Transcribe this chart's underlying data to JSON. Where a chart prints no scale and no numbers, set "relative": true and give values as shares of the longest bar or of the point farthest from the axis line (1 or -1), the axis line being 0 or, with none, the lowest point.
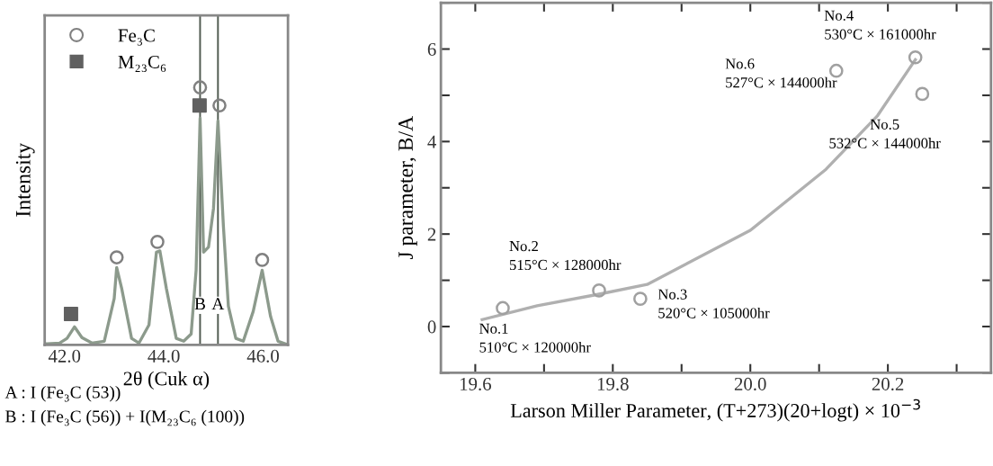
{
  "chart_data": [
    {
      "type": "line",
      "relative": true,
      "xlabel": "2θ (Cuk α)",
      "ylabel": "Intensity",
      "xlim": [
        41.6,
        46.5
      ],
      "xticks": [
        {
          "value": 42,
          "label": "42.0"
        },
        {
          "value": 44,
          "label": "44.0"
        },
        {
          "value": 46,
          "label": "46.0"
        }
      ],
      "tick_labels": "x",
      "legend": "top left",
      "grid": false,
      "series": [
        {
          "color": "#8c9a8c",
          "marker": "none",
          "x": [
            41.65,
            41.9,
            42.05,
            42.2,
            42.35,
            42.55,
            42.8,
            43.0,
            43.05,
            43.15,
            43.35,
            43.5,
            43.7,
            43.85,
            43.92,
            44.05,
            44.25,
            44.4,
            44.55,
            44.65,
            44.73,
            44.8,
            44.9,
            45.0,
            45.09,
            45.2,
            45.3,
            45.45,
            45.6,
            45.8,
            45.98,
            46.15,
            46.3,
            46.45
          ],
          "values": [
            0.004,
            0.007,
            0.025,
            0.07,
            0.028,
            0.007,
            0.014,
            0.18,
            0.3,
            0.22,
            0.025,
            0.007,
            0.077,
            0.36,
            0.365,
            0.22,
            0.025,
            0.014,
            0.042,
            0.29,
            0.88,
            0.36,
            0.38,
            0.53,
            0.87,
            0.46,
            0.15,
            0.025,
            0.014,
            0.13,
            0.29,
            0.11,
            0.014,
            0.004
          ]
        },
        {
          "type": "scatter",
          "name": "Fe₃C",
          "color": "#808080",
          "marker": "circle",
          "x": [
            43.05,
            43.87,
            44.73,
            45.12,
            45.98
          ],
          "values": [
            0.34,
            0.4,
            1.0,
            0.93,
            0.33
          ]
        },
        {
          "type": "scatter",
          "name": "M₂₃C₆",
          "color": "#606060",
          "marker": "square",
          "x": [
            42.13,
            44.72
          ],
          "values": [
            0.12,
            0.93
          ]
        }
      ],
      "ref_lines": [
        {
          "axis": "x",
          "value": 44.73,
          "label": "B",
          "color": "#505a50"
        },
        {
          "axis": "x",
          "value": 45.09,
          "label": "A",
          "color": "#505a50"
        }
      ],
      "annotations": [
        "A : I (Fe₃C (53))",
        "B : I (Fe₃C (56)) + I(M₂₃C₆ (100))"
      ]
    },
    {
      "type": "scatter",
      "xlabel": "Larson Miller Parameter, (T+273)(20+logt) × 10$^{−3}$",
      "ylabel": "J parameter, B/A",
      "xlim": [
        19.55,
        20.35
      ],
      "ylim": [
        -1,
        7
      ],
      "xticks": [
        {
          "value": 19.6,
          "label": "19.6"
        },
        {
          "value": 19.7,
          "label": null
        },
        {
          "value": 19.8,
          "label": "19.8"
        },
        {
          "value": 19.9,
          "label": null
        },
        {
          "value": 20.0,
          "label": "20.0"
        },
        {
          "value": 20.1,
          "label": null
        },
        {
          "value": 20.2,
          "label": "20.2"
        },
        {
          "value": 20.3,
          "label": null
        }
      ],
      "yticks": [
        {
          "value": -1,
          "label": null
        },
        0,
        {
          "value": 1,
          "label": null
        },
        2,
        {
          "value": 3,
          "label": null
        },
        4,
        {
          "value": 5,
          "label": null
        },
        6,
        {
          "value": 7,
          "label": null
        }
      ],
      "legend": false,
      "grid": false,
      "series": [
        {
          "color": "#a0a0a0",
          "marker": "circle",
          "x": [
            19.64,
            19.78,
            19.84,
            20.24,
            20.25,
            20.125
          ],
          "values": [
            0.4,
            0.78,
            0.6,
            5.82,
            5.03,
            5.53
          ]
        },
        {
          "type": "line",
          "color": "#b0b0b0",
          "marker": "none",
          "x": [
            19.61,
            19.69,
            19.78,
            19.85,
            20.0,
            20.11,
            20.185,
            20.24
          ],
          "values": [
            0.15,
            0.45,
            0.7,
            0.91,
            2.08,
            3.4,
            4.56,
            5.77
          ]
        }
      ],
      "annotations": [
        {
          "text": "No.1\n510°C × 120000hr",
          "x": 19.64,
          "y": 0.4
        },
        {
          "text": "No.2\n515°C × 128000hr",
          "x": 19.78,
          "y": 0.78
        },
        {
          "text": "No.3\n520°C × 105000hr",
          "x": 19.84,
          "y": 0.6
        },
        {
          "text": "No.4\n530°C × 161000hr",
          "x": 20.24,
          "y": 5.82
        },
        {
          "text": "No.5\n532°C × 144000hr",
          "x": 20.25,
          "y": 5.03
        },
        {
          "text": "No.6\n527°C × 144000hr",
          "x": 20.125,
          "y": 5.53
        }
      ]
    }
  ]
}
